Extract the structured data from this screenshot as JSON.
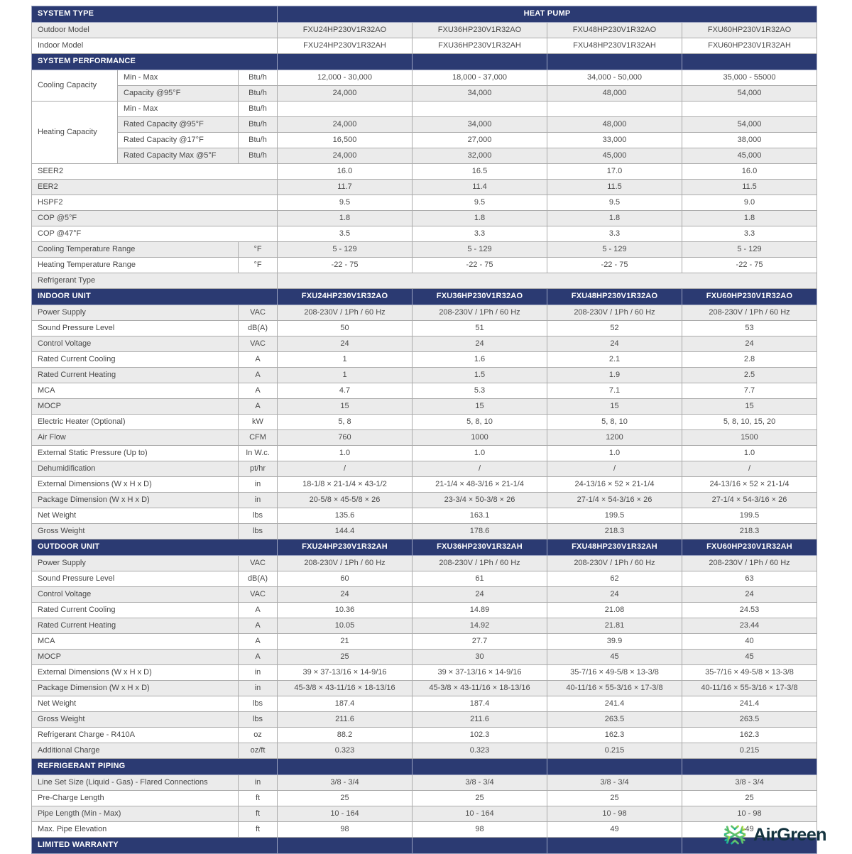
{
  "table": {
    "sections": [
      {
        "id": "system_type",
        "header": {
          "label": "SYSTEM TYPE",
          "merged_value": "HEAT PUMP"
        },
        "rows": [
          {
            "label": "Outdoor Model",
            "values": [
              "FXU24HP230V1R32AO",
              "FXU36HP230V1R32AO",
              "FXU48HP230V1R32AO",
              "FXU60HP230V1R32AO"
            ]
          },
          {
            "label": "Indoor Model",
            "values": [
              "FXU24HP230V1R32AH",
              "FXU36HP230V1R32AH",
              "FXU48HP230V1R32AH",
              "FXU60HP230V1R32AH"
            ]
          }
        ]
      },
      {
        "id": "system_performance",
        "header": {
          "label": "SYSTEM PERFORMANCE"
        },
        "rows": [
          {
            "group": "Cooling Capacity",
            "group_span": 2,
            "sub": "Min - Max",
            "unit": "Btu/h",
            "values": [
              "12,000 - 30,000",
              "18,000 - 37,000",
              "34,000 - 50,000",
              "35,000 - 55000"
            ]
          },
          {
            "sub": "Capacity @95°F",
            "unit": "Btu/h",
            "values": [
              "24,000",
              "34,000",
              "48,000",
              "54,000"
            ]
          },
          {
            "group": "Heating Capacity",
            "group_span": 4,
            "sub": "Min - Max",
            "unit": "Btu/h",
            "values": [
              "",
              "",
              "",
              ""
            ]
          },
          {
            "sub": "Rated Capacity @95°F",
            "unit": "Btu/h",
            "values": [
              "24,000",
              "34,000",
              "48,000",
              "54,000"
            ]
          },
          {
            "sub": "Rated Capacity @17°F",
            "unit": "Btu/h",
            "values": [
              "16,500",
              "27,000",
              "33,000",
              "38,000"
            ]
          },
          {
            "sub": "Rated Capacity Max @5°F",
            "unit": "Btu/h",
            "values": [
              "24,000",
              "32,000",
              "45,000",
              "45,000"
            ]
          },
          {
            "label": "SEER2",
            "values": [
              "16.0",
              "16.5",
              "17.0",
              "16.0"
            ]
          },
          {
            "label": "EER2",
            "values": [
              "11.7",
              "11.4",
              "11.5",
              "11.5"
            ]
          },
          {
            "label": "HSPF2",
            "values": [
              "9.5",
              "9.5",
              "9.5",
              "9.0"
            ]
          },
          {
            "label": "COP @5°F",
            "values": [
              "1.8",
              "1.8",
              "1.8",
              "1.8"
            ]
          },
          {
            "label": "COP @47°F",
            "values": [
              "3.5",
              "3.3",
              "3.3",
              "3.3"
            ]
          },
          {
            "label": "Cooling Temperature Range",
            "unit": "°F",
            "values": [
              "5 - 129",
              "5 - 129",
              "5 - 129",
              "5 - 129"
            ]
          },
          {
            "label": "Heating Temperature Range",
            "unit": "°F",
            "values": [
              "-22 - 75",
              "-22 - 75",
              "-22 - 75",
              "-22 - 75"
            ]
          },
          {
            "label": "Refrigerant Type",
            "values_merged": ""
          }
        ]
      },
      {
        "id": "indoor_unit",
        "header": {
          "label": "INDOOR UNIT",
          "model_values": [
            "FXU24HP230V1R32AO",
            "FXU36HP230V1R32AO",
            "FXU48HP230V1R32AO",
            "FXU60HP230V1R32AO"
          ]
        },
        "rows": [
          {
            "label": "Power Supply",
            "unit": "VAC",
            "values": [
              "208-230V / 1Ph / 60 Hz",
              "208-230V / 1Ph / 60 Hz",
              "208-230V / 1Ph / 60 Hz",
              "208-230V / 1Ph / 60 Hz"
            ]
          },
          {
            "label": "Sound Pressure Level",
            "unit": "dB(A)",
            "values": [
              "50",
              "51",
              "52",
              "53"
            ]
          },
          {
            "label": "Control Voltage",
            "unit": "VAC",
            "values": [
              "24",
              "24",
              "24",
              "24"
            ]
          },
          {
            "label": "Rated Current Cooling",
            "unit": "A",
            "values": [
              "1",
              "1.6",
              "2.1",
              "2.8"
            ]
          },
          {
            "label": "Rated Current Heating",
            "unit": "A",
            "values": [
              "1",
              "1.5",
              "1.9",
              "2.5"
            ]
          },
          {
            "label": "MCA",
            "unit": "A",
            "values": [
              "4.7",
              "5.3",
              "7.1",
              "7.7"
            ]
          },
          {
            "label": "MOCP",
            "unit": "A",
            "values": [
              "15",
              "15",
              "15",
              "15"
            ]
          },
          {
            "label": "Electric Heater (Optional)",
            "unit": "kW",
            "values": [
              "5, 8",
              "5, 8, 10",
              "5, 8, 10",
              "5, 8, 10, 15, 20"
            ]
          },
          {
            "label": "Air Flow",
            "unit": "CFM",
            "values": [
              "760",
              "1000",
              "1200",
              "1500"
            ]
          },
          {
            "label": "External Static Pressure (Up to)",
            "unit": "In W.c.",
            "values": [
              "1.0",
              "1.0",
              "1.0",
              "1.0"
            ]
          },
          {
            "label": "Dehumidification",
            "unit": "pt/hr",
            "values": [
              "/",
              "/",
              "/",
              "/"
            ]
          },
          {
            "label": "External Dimensions  (W x H x D)",
            "unit": "in",
            "values": [
              "18-1/8 × 21-1/4 × 43-1/2",
              "21-1/4 × 48-3/16 × 21-1/4",
              "24-13/16 × 52 × 21-1/4",
              "24-13/16 × 52 × 21-1/4"
            ]
          },
          {
            "label": "Package Dimension (W x H x D)",
            "unit": "in",
            "values": [
              "20-5/8 × 45-5/8 × 26",
              "23-3/4 × 50-3/8 × 26",
              "27-1/4 × 54-3/16 × 26",
              "27-1/4 × 54-3/16 × 26"
            ]
          },
          {
            "label": "Net Weight",
            "unit": "lbs",
            "values": [
              "135.6",
              "163.1",
              "199.5",
              "199.5"
            ]
          },
          {
            "label": "Gross Weight",
            "unit": "lbs",
            "values": [
              "144.4",
              "178.6",
              "218.3",
              "218.3"
            ]
          }
        ]
      },
      {
        "id": "outdoor_unit",
        "header": {
          "label": "OUTDOOR UNIT",
          "model_values": [
            "FXU24HP230V1R32AH",
            "FXU36HP230V1R32AH",
            "FXU48HP230V1R32AH",
            "FXU60HP230V1R32AH"
          ]
        },
        "rows": [
          {
            "label": "Power Supply",
            "unit": "VAC",
            "values": [
              "208-230V / 1Ph / 60 Hz",
              "208-230V / 1Ph / 60 Hz",
              "208-230V / 1Ph / 60 Hz",
              "208-230V / 1Ph / 60 Hz"
            ]
          },
          {
            "label": "Sound Pressure Level",
            "unit": "dB(A)",
            "values": [
              "60",
              "61",
              "62",
              "63"
            ]
          },
          {
            "label": "Control Voltage",
            "unit": "VAC",
            "values": [
              "24",
              "24",
              "24",
              "24"
            ]
          },
          {
            "label": "Rated Current Cooling",
            "unit": "A",
            "values": [
              "10.36",
              "14.89",
              "21.08",
              "24.53"
            ]
          },
          {
            "label": "Rated Current Heating",
            "unit": "A",
            "values": [
              "10.05",
              "14.92",
              "21.81",
              "23.44"
            ]
          },
          {
            "label": "MCA",
            "unit": "A",
            "values": [
              "21",
              "27.7",
              "39.9",
              "40"
            ]
          },
          {
            "label": "MOCP",
            "unit": "A",
            "values": [
              "25",
              "30",
              "45",
              "45"
            ]
          },
          {
            "label": "External Dimensions  (W x H x D)",
            "unit": "in",
            "values": [
              "39 × 37-13/16 × 14-9/16",
              "39 × 37-13/16 × 14-9/16",
              "35-7/16 × 49-5/8 × 13-3/8",
              "35-7/16 × 49-5/8 × 13-3/8"
            ]
          },
          {
            "label": "Package Dimension (W x H x D)",
            "unit": "in",
            "values": [
              "45-3/8 × 43-11/16 × 18-13/16",
              "45-3/8 × 43-11/16 × 18-13/16",
              "40-11/16 × 55-3/16 × 17-3/8",
              "40-11/16 × 55-3/16 × 17-3/8"
            ]
          },
          {
            "label": "Net Weight",
            "unit": "lbs",
            "values": [
              "187.4",
              "187.4",
              "241.4",
              "241.4"
            ]
          },
          {
            "label": "Gross Weight",
            "unit": "lbs",
            "values": [
              "211.6",
              "211.6",
              "263.5",
              "263.5"
            ]
          },
          {
            "label": "Refrigerant Charge - R410A",
            "unit": "oz",
            "values": [
              "88.2",
              "102.3",
              "162.3",
              "162.3"
            ]
          },
          {
            "label": "Additional Charge",
            "unit": "oz/ft",
            "values": [
              "0.323",
              "0.323",
              "0.215",
              "0.215"
            ]
          }
        ]
      },
      {
        "id": "refrigerant_piping",
        "header": {
          "label": "REFRIGERANT PIPING"
        },
        "rows": [
          {
            "label": "Line Set Size (Liquid - Gas) - Flared Connections",
            "unit": "in",
            "values": [
              "3/8 - 3/4",
              "3/8 - 3/4",
              "3/8 - 3/4",
              "3/8 - 3/4"
            ]
          },
          {
            "label": "Pre-Charge Length",
            "unit": "ft",
            "values": [
              "25",
              "25",
              "25",
              "25"
            ]
          },
          {
            "label": "Pipe Length (Min - Max)",
            "unit": "ft",
            "values": [
              "10 - 164",
              "10 - 164",
              "10 - 98",
              "10 - 98"
            ]
          },
          {
            "label": "Max. Pipe Elevation",
            "unit": "ft",
            "values": [
              "98",
              "98",
              "49",
              "49"
            ]
          }
        ]
      },
      {
        "id": "limited_warranty",
        "header": {
          "label": "LIMITED WARRANTY"
        },
        "rows": []
      }
    ]
  },
  "logo": {
    "text": "AirGreen",
    "icon": "snowflake-icon"
  },
  "colors": {
    "header_blue": "#2b3a72",
    "stripe_gray": "#ebebeb",
    "logo_green": "#8dc63f",
    "logo_teal": "#12b2a0",
    "logo_text": "#14333f"
  }
}
